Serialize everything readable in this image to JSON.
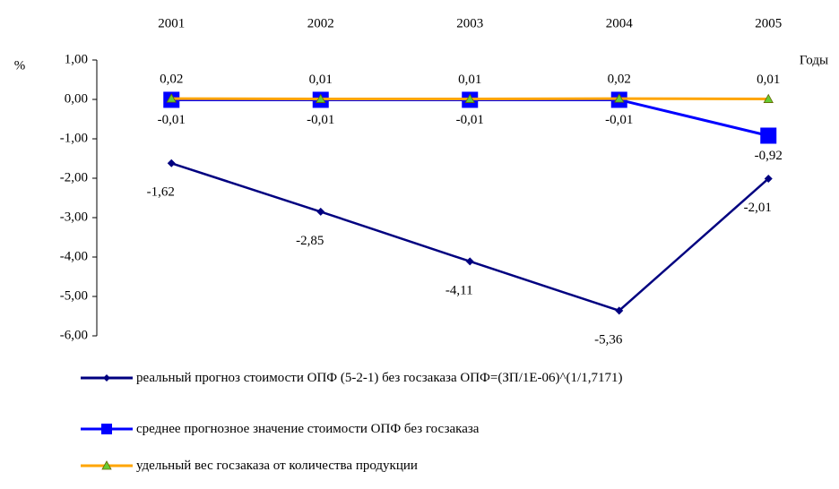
{
  "chart_data": {
    "type": "line",
    "y_label": "%",
    "x_label": "Годы",
    "categories": [
      "2001",
      "2002",
      "2003",
      "2004",
      "2005"
    ],
    "ylim": [
      -6,
      1
    ],
    "yticks": [
      {
        "value": 1,
        "label": "1,00"
      },
      {
        "value": 0,
        "label": "0,00"
      },
      {
        "value": -1,
        "label": "-1,00"
      },
      {
        "value": -2,
        "label": "-2,00"
      },
      {
        "value": -3,
        "label": "-3,00"
      },
      {
        "value": -4,
        "label": "-4,00"
      },
      {
        "value": -5,
        "label": "-5,00"
      },
      {
        "value": -6,
        "label": "-6,00"
      }
    ],
    "series": [
      {
        "name": "реальный прогноз стоимости ОПФ (5-2-1) без госзаказа ОПФ=(ЗП/1Е-06)^(1/1,7171)",
        "color": "#000080",
        "marker": "diamond",
        "values": [
          -1.62,
          -2.85,
          -4.11,
          -5.36,
          -2.01
        ],
        "value_labels": [
          "-1,62",
          "-2,85",
          "-4,11",
          "-5,36",
          "-2,01"
        ]
      },
      {
        "name": "среднее прогнозное значение стоимости ОПФ без госзаказа",
        "color": "#0000ff",
        "marker": "square",
        "values": [
          -0.01,
          -0.01,
          -0.01,
          -0.01,
          -0.92
        ],
        "value_labels": [
          "-0,01",
          "-0,01",
          "-0,01",
          "-0,01",
          "-0,92"
        ]
      },
      {
        "name": "удельный вес госзаказа от количества продукции",
        "color": "#ffa500",
        "marker": "triangle",
        "values": [
          0.02,
          0.01,
          0.01,
          0.02,
          0.01
        ],
        "value_labels": [
          "0,02",
          "0,01",
          "0,01",
          "0,02",
          "0,01"
        ]
      }
    ]
  }
}
